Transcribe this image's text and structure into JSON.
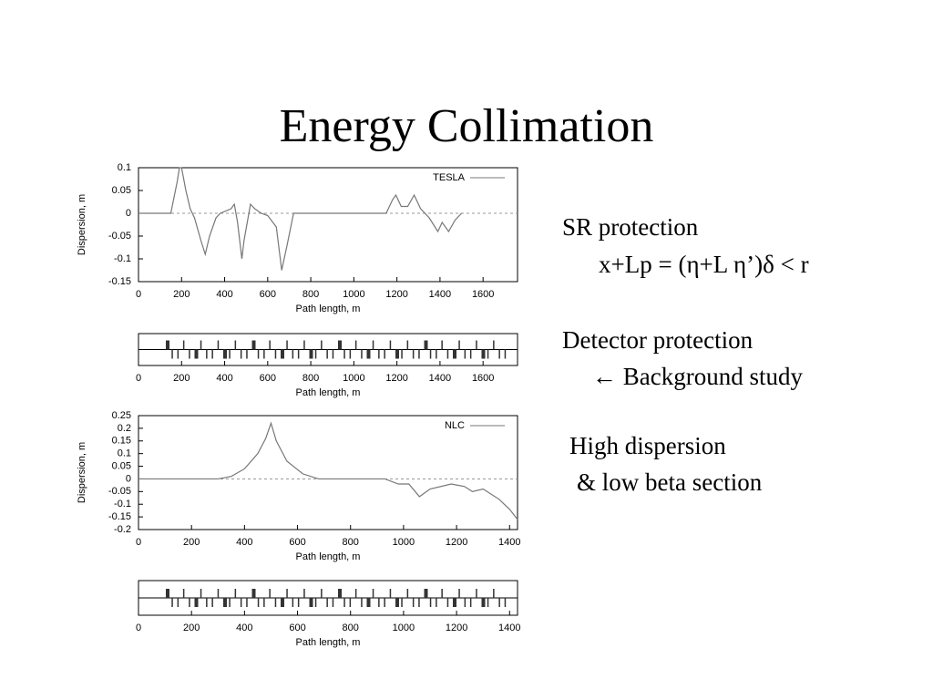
{
  "title": "Energy Collimation",
  "text": [
    "SR protection",
    "x+Lp = (η+L η’)δ < r",
    "Detector protection",
    "← Background study",
    "High dispersion",
    "& low beta section"
  ],
  "chart_data": [
    {
      "type": "line",
      "xlabel": "Path length, m",
      "ylabel": "Dispersion, m",
      "xlim": [
        0,
        1760
      ],
      "ylim": [
        -0.15,
        0.1
      ],
      "xticks": [
        0,
        200,
        400,
        600,
        800,
        1000,
        1200,
        1400,
        1600
      ],
      "yticks": [
        -0.15,
        -0.1,
        -0.05,
        0,
        0.05,
        0.1
      ],
      "legend": "upper right",
      "x": [
        0,
        150,
        180,
        190,
        200,
        220,
        240,
        260,
        290,
        310,
        330,
        360,
        380,
        430,
        445,
        460,
        480,
        490,
        520,
        540,
        570,
        600,
        640,
        665,
        690,
        720,
        1150,
        1180,
        1195,
        1220,
        1250,
        1280,
        1310,
        1350,
        1390,
        1410,
        1440,
        1470,
        1500
      ],
      "series": [
        {
          "name": "TESLA",
          "color": "#777777",
          "values": [
            0,
            0,
            0.07,
            0.1,
            0.1,
            0.05,
            0.01,
            -0.01,
            -0.06,
            -0.09,
            -0.05,
            -0.01,
            0,
            0.01,
            0.02,
            -0.02,
            -0.1,
            -0.06,
            0.02,
            0.01,
            0,
            -0.005,
            -0.03,
            -0.125,
            -0.07,
            0,
            0,
            0.03,
            0.04,
            0.015,
            0.015,
            0.04,
            0.01,
            -0.01,
            -0.04,
            -0.02,
            -0.04,
            -0.015,
            0
          ]
        }
      ]
    },
    {
      "type": "lattice",
      "xlabel": "Path length, m",
      "xlim": [
        0,
        1760
      ],
      "xticks": [
        0,
        200,
        400,
        600,
        800,
        1000,
        1200,
        1400,
        1600
      ]
    },
    {
      "type": "line",
      "xlabel": "Path length, m",
      "ylabel": "Dispersion, m",
      "xlim": [
        0,
        1430
      ],
      "ylim": [
        -0.2,
        0.25
      ],
      "xticks": [
        0,
        200,
        400,
        600,
        800,
        1000,
        1200,
        1400
      ],
      "yticks": [
        -0.2,
        -0.15,
        -0.1,
        -0.05,
        0,
        0.05,
        0.1,
        0.15,
        0.2,
        0.25
      ],
      "legend": "upper right",
      "x": [
        0,
        300,
        350,
        400,
        450,
        480,
        500,
        520,
        560,
        620,
        680,
        930,
        980,
        1020,
        1060,
        1100,
        1180,
        1230,
        1260,
        1300,
        1360,
        1400,
        1430
      ],
      "series": [
        {
          "name": "NLC",
          "color": "#777777",
          "values": [
            0,
            0,
            0.01,
            0.04,
            0.1,
            0.16,
            0.22,
            0.15,
            0.07,
            0.02,
            0,
            0,
            -0.02,
            -0.02,
            -0.07,
            -0.04,
            -0.02,
            -0.03,
            -0.05,
            -0.04,
            -0.08,
            -0.12,
            -0.16
          ]
        }
      ]
    },
    {
      "type": "lattice",
      "xlabel": "Path length, m",
      "xlim": [
        0,
        1430
      ],
      "xticks": [
        0,
        200,
        400,
        600,
        800,
        1000,
        1200,
        1400
      ]
    }
  ]
}
